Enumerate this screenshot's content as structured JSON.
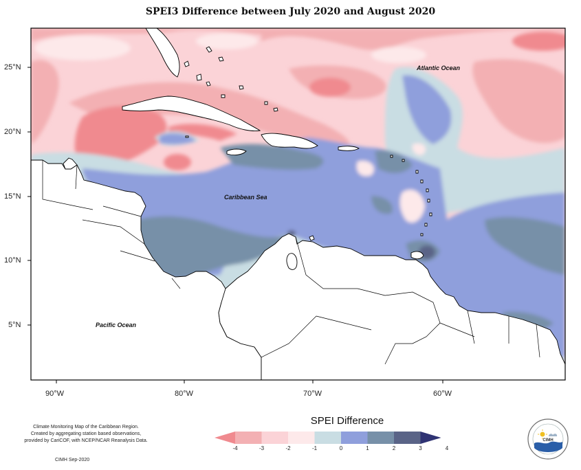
{
  "title": "SPEI3 Difference between July 2020 and August 2020",
  "map": {
    "lat_ticks": [
      "25°N",
      "20°N",
      "15°N",
      "10°N",
      "5°N"
    ],
    "lon_ticks": [
      "90°W",
      "80°W",
      "70°W",
      "60°W"
    ],
    "labels": {
      "atlantic": "Atlantic Ocean",
      "caribbean": "Caribbean Sea",
      "pacific": "Pacific Ocean"
    }
  },
  "legend": {
    "title": "SPEI Difference",
    "ticks": [
      "-4",
      "-3",
      "-2",
      "-1",
      "0",
      "1",
      "2",
      "3",
      "4"
    ],
    "colors": [
      "#f08a8f",
      "#f3b0b3",
      "#fbd3d7",
      "#fde9ea",
      "#c9dde3",
      "#8f9fdc",
      "#7790a8",
      "#5a6487",
      "#2f3373"
    ]
  },
  "credit": {
    "lines": [
      "Climate Monitoring Map of the Caribbean Region.",
      "Created by aggregating station based observations,",
      "provided by CariCOF, with NCEP/NCAR Reanalysis Data."
    ],
    "date": "CIMH Sep-2020"
  },
  "logo": {
    "text": "CIMH"
  }
}
